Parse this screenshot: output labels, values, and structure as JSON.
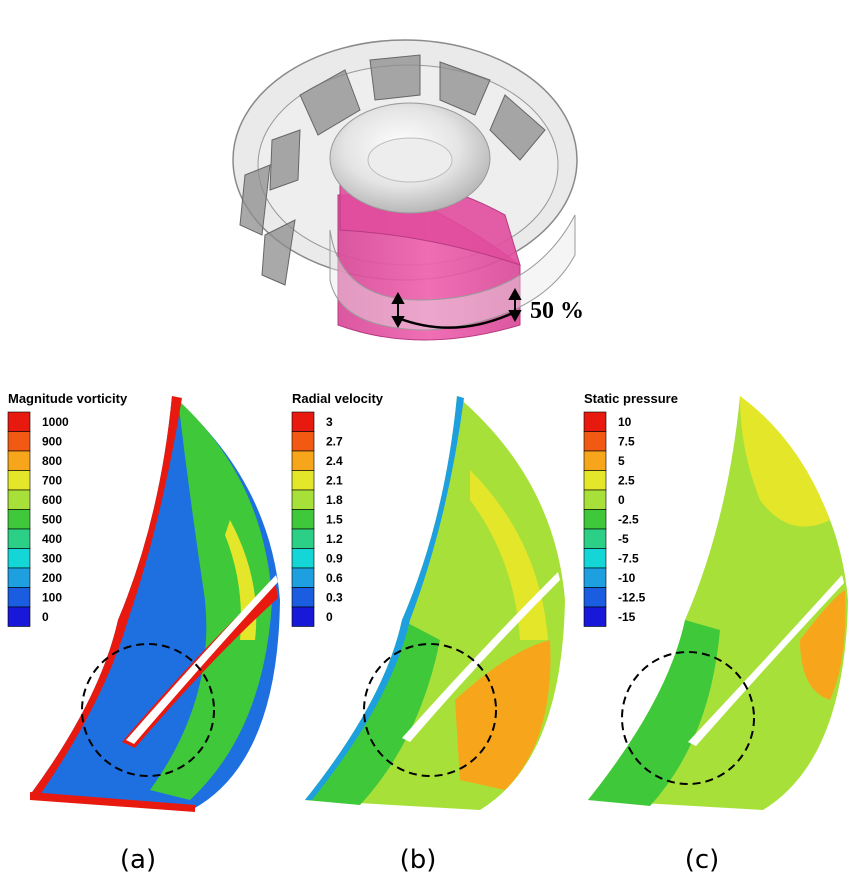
{
  "impeller": {
    "section_label": "50 %"
  },
  "legend_colors": [
    "#e81a10",
    "#f25a14",
    "#f7a61c",
    "#e4e62a",
    "#a8e03a",
    "#3fc93a",
    "#2ccf86",
    "#14d6d6",
    "#1e9fe0",
    "#1a5de0",
    "#1818d8"
  ],
  "panels": [
    {
      "label": "(a)",
      "legend_title": "Magnitude vorticity",
      "levels": [
        "1000",
        "900",
        "800",
        "700",
        "600",
        "500",
        "400",
        "300",
        "200",
        "100",
        "0"
      ]
    },
    {
      "label": "(b)",
      "legend_title": "Radial velocity",
      "levels": [
        "3",
        "2.7",
        "2.4",
        "2.1",
        "1.8",
        "1.5",
        "1.2",
        "0.9",
        "0.6",
        "0.3",
        "0"
      ]
    },
    {
      "label": "(c)",
      "legend_title": "Static pressure",
      "levels": [
        "10",
        "7.5",
        "5",
        "2.5",
        "0",
        "-2.5",
        "-5",
        "-7.5",
        "-10",
        "-12.5",
        "-15"
      ]
    }
  ]
}
